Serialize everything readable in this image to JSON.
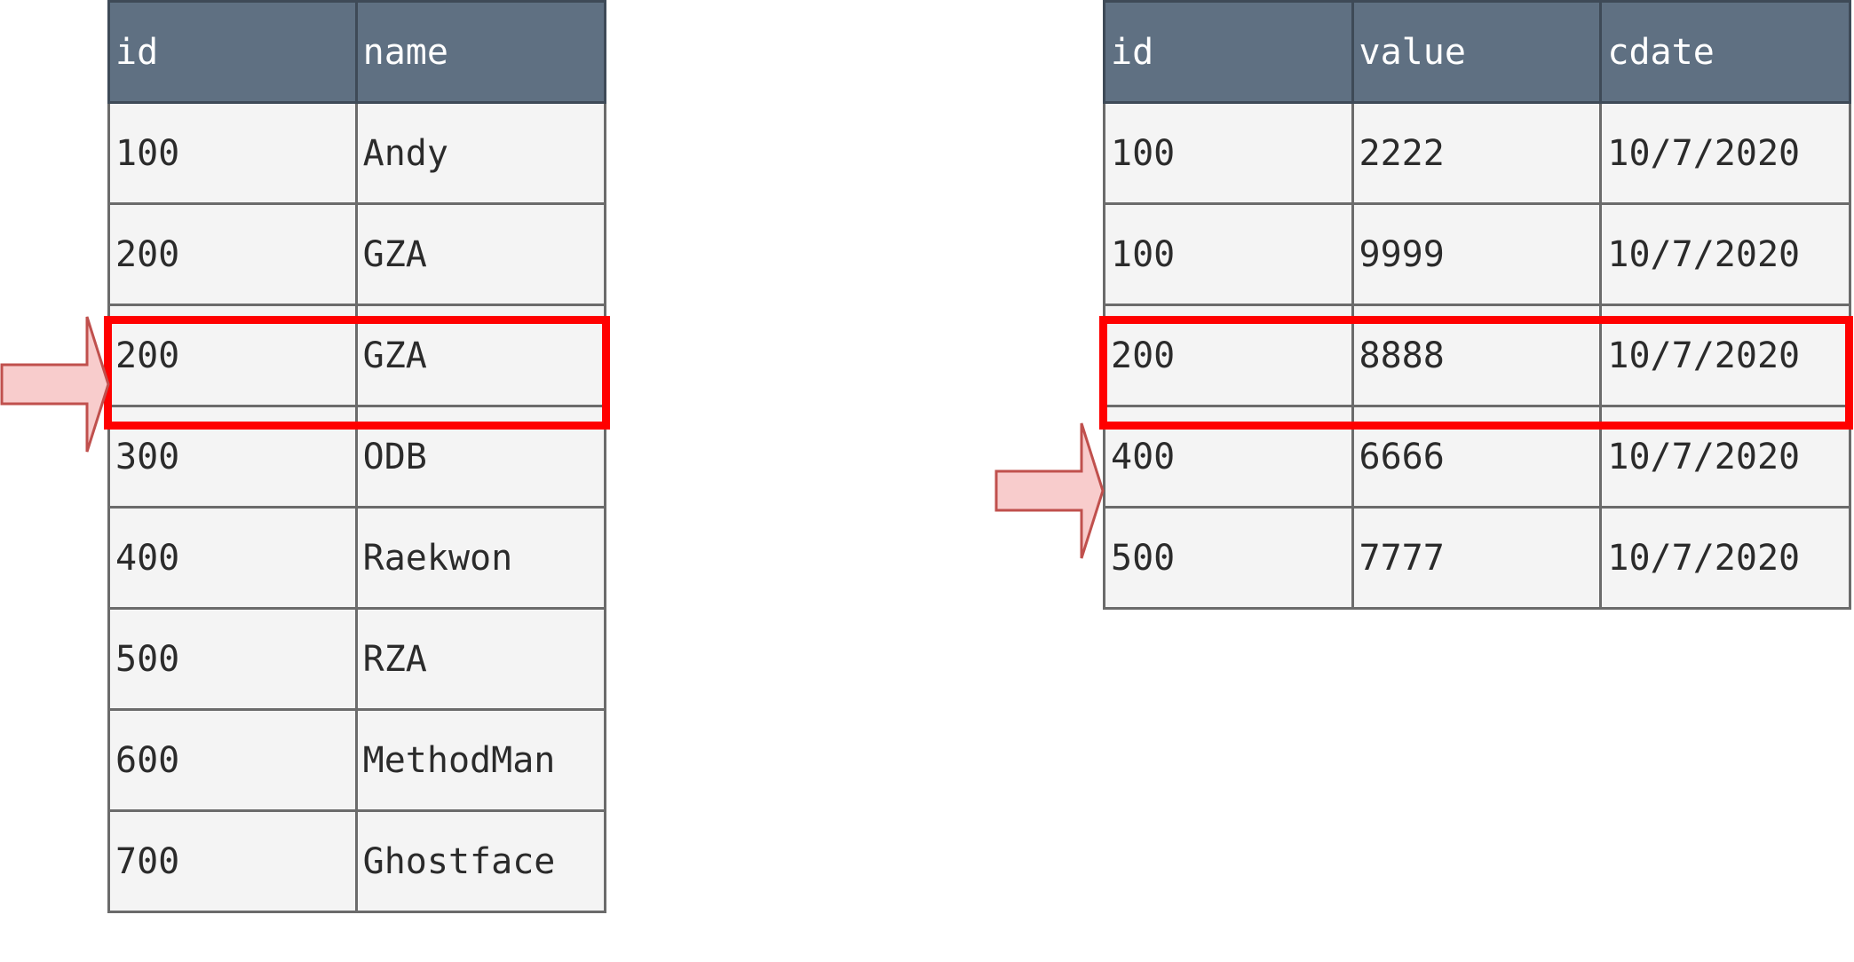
{
  "left_table": {
    "headers": [
      "id",
      "name"
    ],
    "rows": [
      [
        "100",
        "Andy"
      ],
      [
        "200",
        "GZA"
      ],
      [
        "200",
        "GZA"
      ],
      [
        "300",
        "ODB"
      ],
      [
        "400",
        "Raekwon"
      ],
      [
        "500",
        "RZA"
      ],
      [
        "600",
        "MethodMan"
      ],
      [
        "700",
        "Ghostface"
      ]
    ]
  },
  "right_table": {
    "headers": [
      "id",
      "value",
      "cdate"
    ],
    "rows": [
      [
        "100",
        "2222",
        "10/7/2020"
      ],
      [
        "100",
        "9999",
        "10/7/2020"
      ],
      [
        "200",
        "8888",
        "10/7/2020"
      ],
      [
        "400",
        "6666",
        "10/7/2020"
      ],
      [
        "500",
        "7777",
        "10/7/2020"
      ]
    ]
  },
  "colors": {
    "header_bg": "#5f7082",
    "cell_bg": "#f4f4f4",
    "highlight": "#ff0000",
    "arrow_fill": "#f8cccc",
    "arrow_stroke": "#c0504d"
  }
}
